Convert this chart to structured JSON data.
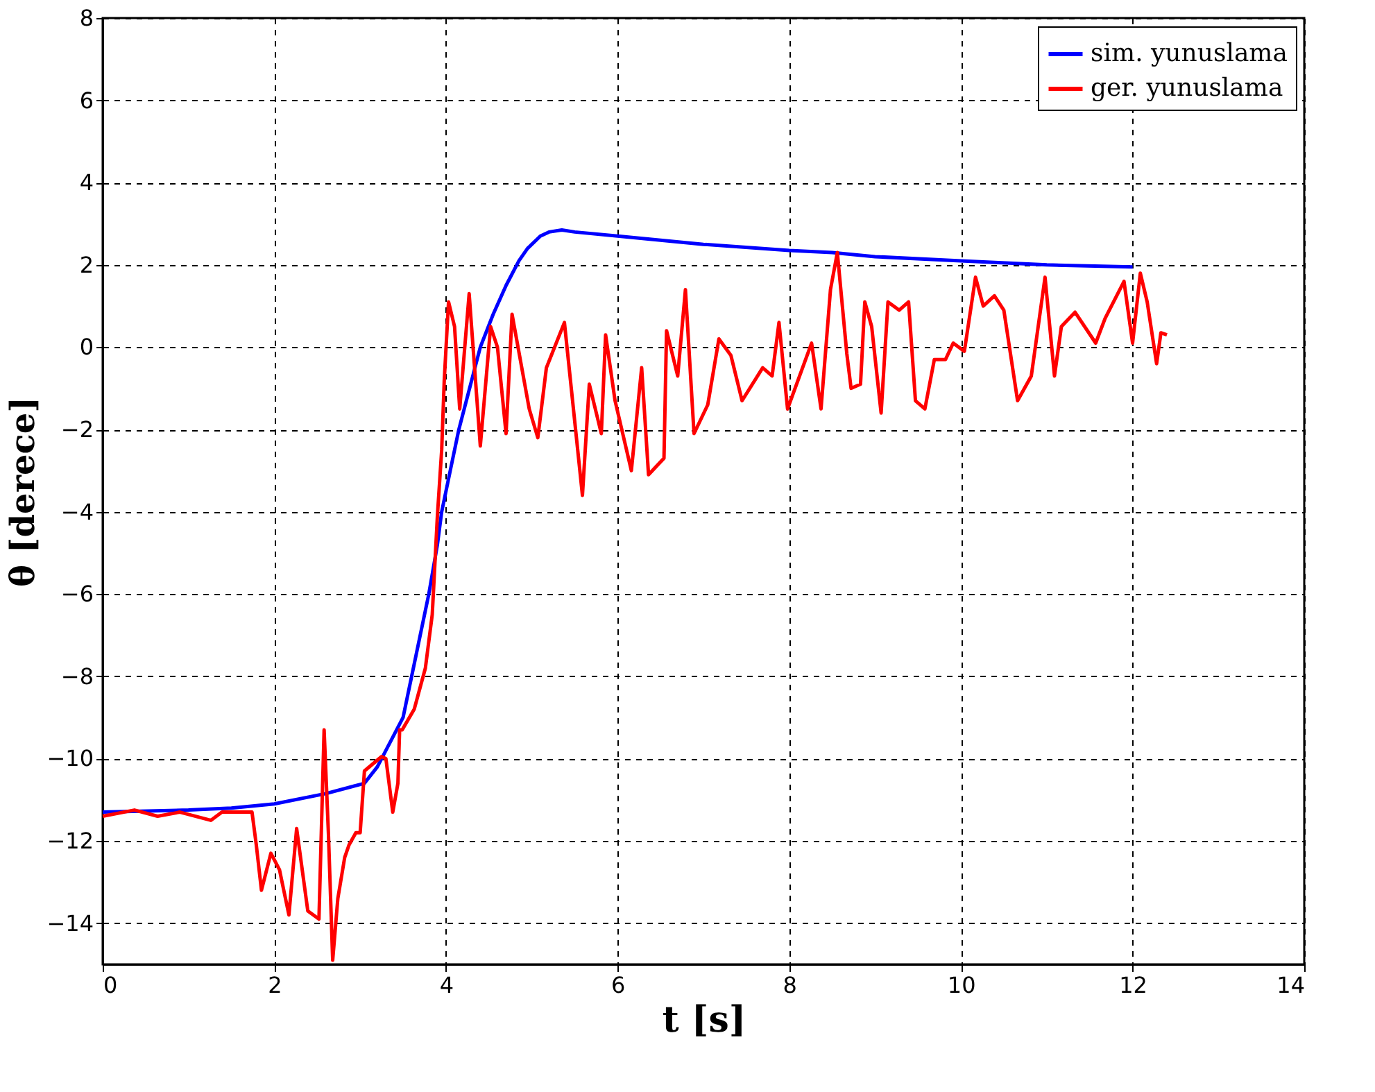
{
  "chart_data": {
    "type": "line",
    "xlabel": "t [s]",
    "ylabel": "θ [derece]",
    "xlim": [
      0,
      14
    ],
    "xticks": [
      0,
      2,
      4,
      6,
      8,
      10,
      12,
      14
    ],
    "ylim": [
      -15,
      8
    ],
    "yticks": [
      -14,
      -12,
      -10,
      -8,
      -6,
      -4,
      -2,
      0,
      2,
      4,
      6,
      8
    ],
    "grid": true,
    "legend": "top right",
    "line_style": "solid",
    "series": [
      {
        "name": "sim. yunuslama",
        "color": "#0000ff",
        "x": [
          0,
          1,
          1.5,
          2,
          2.6,
          3.05,
          3.2,
          3.3,
          3.5,
          3.6,
          3.7,
          3.8,
          3.9,
          3.95,
          4.05,
          4.15,
          4.3,
          4.4,
          4.55,
          4.7,
          4.85,
          4.95,
          5.1,
          5.2,
          5.35,
          5.5,
          6,
          7,
          8,
          8.5,
          9,
          10,
          11,
          12
        ],
        "values": [
          -11.3,
          -11.25,
          -11.2,
          -11.1,
          -10.85,
          -10.6,
          -10.2,
          -9.8,
          -9,
          -8,
          -7,
          -6,
          -4.8,
          -4,
          -3,
          -2,
          -0.8,
          0,
          0.8,
          1.5,
          2.1,
          2.4,
          2.7,
          2.8,
          2.85,
          2.8,
          2.7,
          2.5,
          2.35,
          2.3,
          2.2,
          2.1,
          2.0,
          1.95
        ]
      },
      {
        "name": "ger. yunuslama",
        "color": "#ff0000",
        "x": [
          0,
          0.37,
          0.64,
          0.9,
          1.26,
          1.39,
          1.74,
          1.79,
          1.85,
          1.96,
          2.06,
          2.17,
          2.26,
          2.39,
          2.52,
          2.58,
          2.63,
          2.68,
          2.74,
          2.82,
          2.87,
          2.95,
          3.0,
          3.05,
          3.25,
          3.3,
          3.38,
          3.44,
          3.46,
          3.49,
          3.63,
          3.76,
          3.84,
          3.9,
          3.95,
          3.98,
          4.03,
          4.1,
          4.16,
          4.27,
          4.4,
          4.52,
          4.6,
          4.7,
          4.77,
          4.97,
          5.07,
          5.17,
          5.38,
          5.59,
          5.67,
          5.81,
          5.86,
          5.97,
          6.16,
          6.28,
          6.36,
          6.54,
          6.57,
          6.7,
          6.79,
          6.89,
          7.05,
          7.18,
          7.32,
          7.45,
          7.69,
          7.8,
          7.88,
          7.98,
          8.26,
          8.37,
          8.48,
          8.56,
          8.67,
          8.72,
          8.83,
          8.88,
          8.96,
          9.07,
          9.15,
          9.28,
          9.39,
          9.47,
          9.58,
          9.69,
          9.82,
          9.91,
          10.04,
          10.17,
          10.26,
          10.39,
          10.5,
          10.66,
          10.82,
          10.98,
          11.09,
          11.17,
          11.33,
          11.57,
          11.68,
          11.9,
          12.0,
          12.09,
          12.17,
          12.28,
          12.33,
          12.4
        ],
        "values": [
          -11.4,
          -11.25,
          -11.4,
          -11.3,
          -11.5,
          -11.3,
          -11.3,
          -12.1,
          -13.2,
          -12.3,
          -12.7,
          -13.8,
          -11.7,
          -13.7,
          -13.9,
          -9.3,
          -11.8,
          -14.9,
          -13.4,
          -12.4,
          -12.1,
          -11.8,
          -11.8,
          -10.3,
          -9.95,
          -10.0,
          -11.3,
          -10.6,
          -9.3,
          -9.3,
          -8.8,
          -7.8,
          -6.5,
          -4.1,
          -2.5,
          -0.8,
          1.1,
          0.5,
          -1.5,
          1.3,
          -2.4,
          0.5,
          0,
          -2.1,
          0.8,
          -1.5,
          -2.2,
          -0.5,
          0.6,
          -3.6,
          -0.9,
          -2.1,
          0.3,
          -1.3,
          -3.0,
          -0.5,
          -3.1,
          -2.7,
          0.4,
          -0.7,
          1.4,
          -2.1,
          -1.4,
          0.2,
          -0.2,
          -1.3,
          -0.5,
          -0.7,
          0.6,
          -1.5,
          0.1,
          -1.5,
          1.4,
          2.3,
          -0.15,
          -1.0,
          -0.9,
          1.1,
          0.5,
          -1.6,
          1.1,
          0.9,
          1.1,
          -1.3,
          -1.5,
          -0.3,
          -0.3,
          0.1,
          -0.1,
          1.7,
          1.0,
          1.25,
          0.9,
          -1.3,
          -0.7,
          1.7,
          -0.7,
          0.5,
          0.85,
          0.1,
          0.7,
          1.6,
          0.1,
          1.8,
          1.1,
          -0.4,
          0.35,
          0.3
        ]
      }
    ]
  }
}
